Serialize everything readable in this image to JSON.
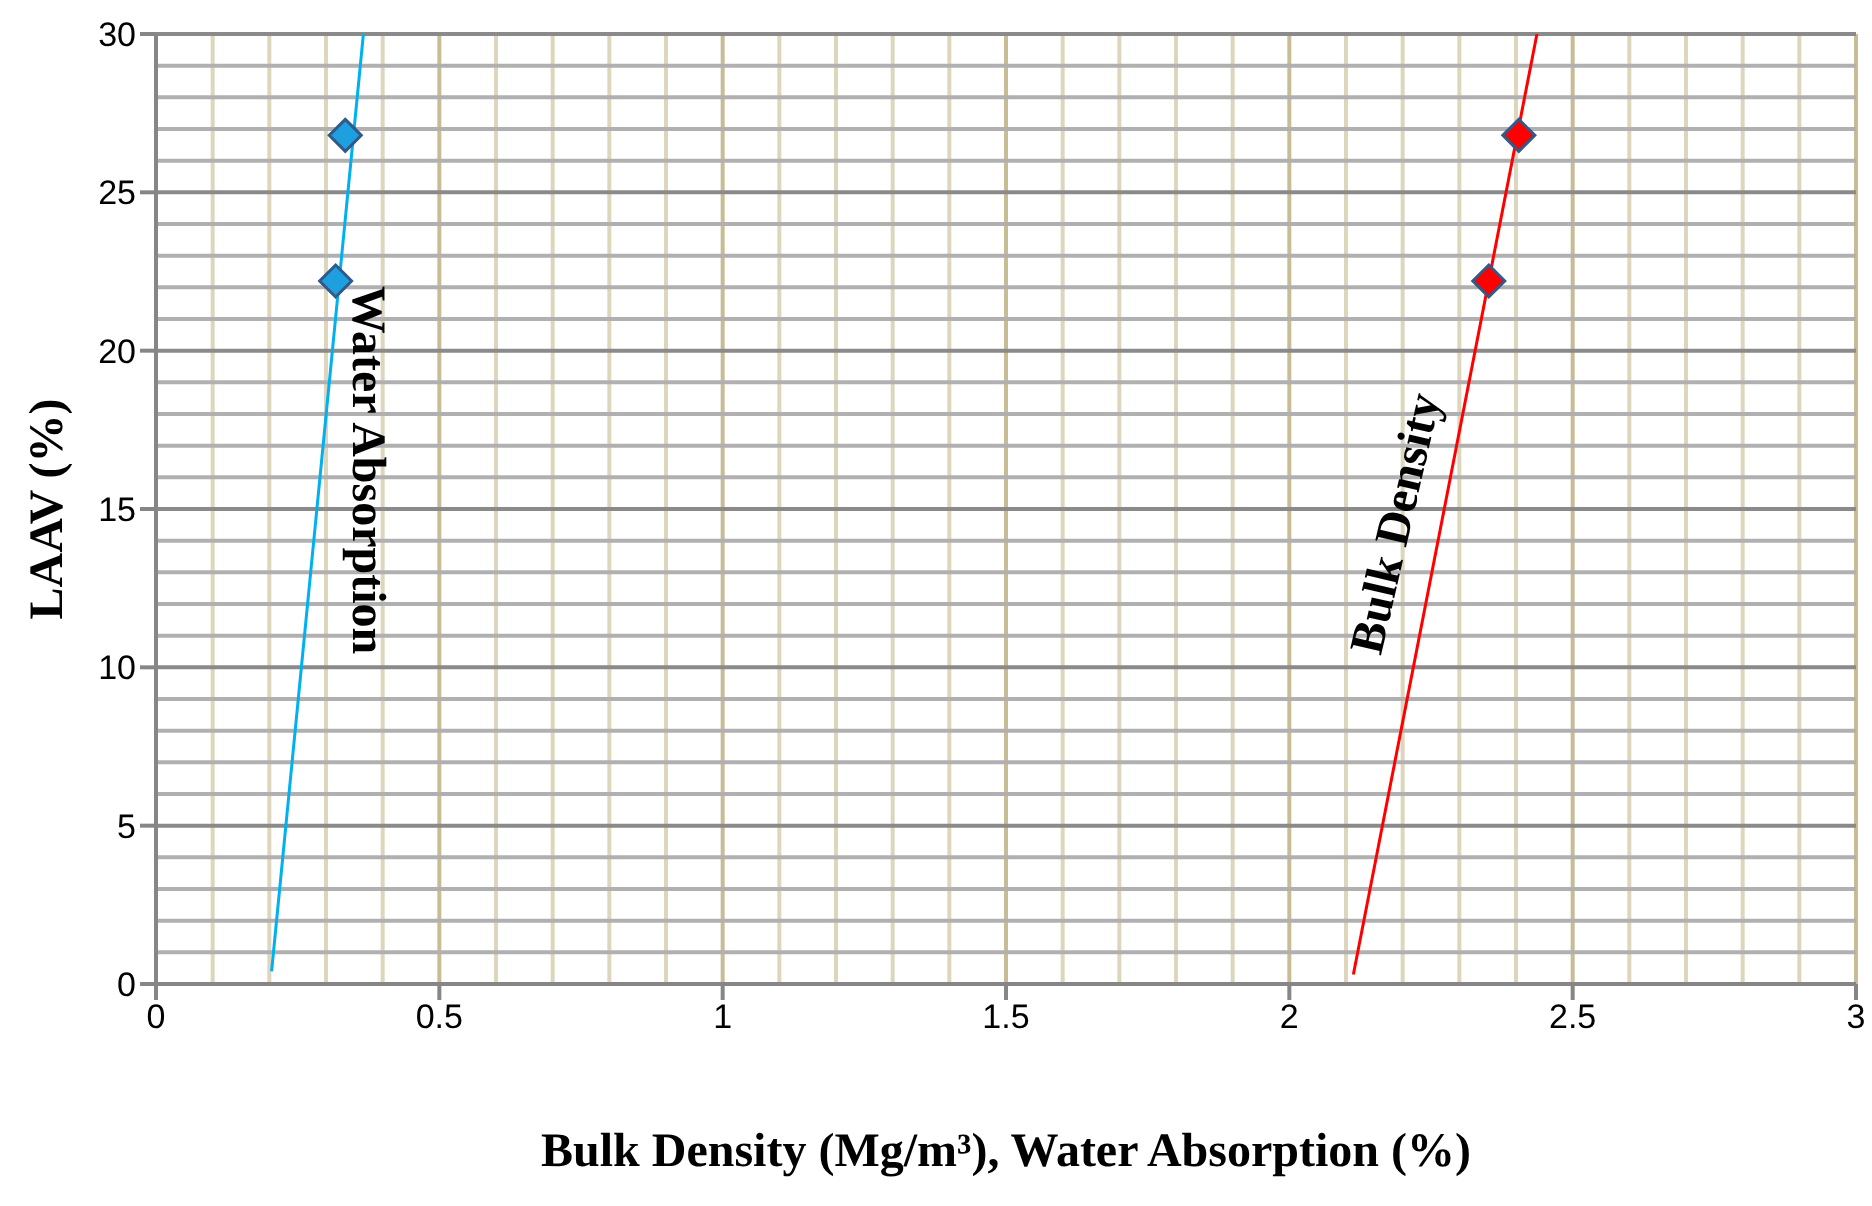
{
  "chart_data": {
    "type": "scatter",
    "xlabel": "Bulk Density (Mg/m³), Water Absorption (%)",
    "ylabel": "LAAV (%)",
    "xlim": [
      0,
      3
    ],
    "xticks": [
      0,
      0.5,
      1,
      1.5,
      2,
      2.5,
      3
    ],
    "ylim": [
      0,
      30
    ],
    "yticks": [
      0,
      5,
      10,
      15,
      20,
      25,
      30
    ],
    "grid": true,
    "series": [
      {
        "color": "#1e9fe0",
        "marker": "diamond",
        "x": [
          0.317,
          0.334
        ],
        "values": [
          22.2,
          26.8
        ]
      },
      {
        "color": "#ff0000",
        "marker": "diamond",
        "x": [
          2.352,
          2.405
        ],
        "values": [
          22.2,
          26.8
        ]
      },
      {
        "type": "line",
        "color": "#00b0f0",
        "marker": "none",
        "x": [
          0.204,
          0.366
        ],
        "values": [
          0.4,
          30
        ]
      },
      {
        "type": "line",
        "color": "#ff0000",
        "marker": "none",
        "x": [
          2.113,
          2.437
        ],
        "values": [
          0.3,
          30
        ]
      }
    ],
    "annotations": [
      "Water Absorption",
      "Bulk Density"
    ]
  }
}
